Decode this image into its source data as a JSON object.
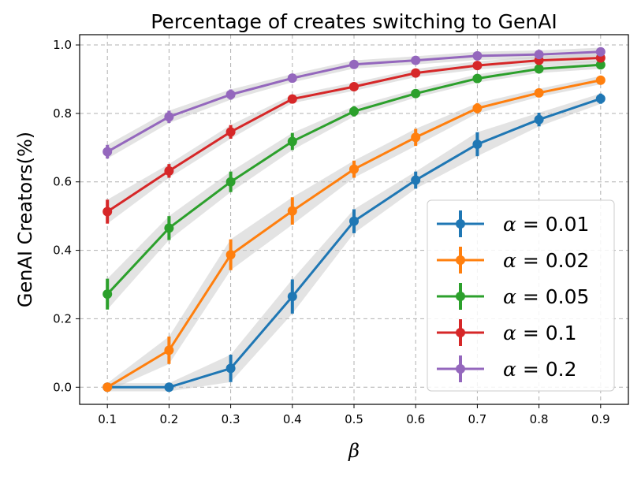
{
  "chart_data": {
    "type": "line",
    "title": "Percentage of creates switching to GenAI",
    "xlabel": "β",
    "ylabel": "GenAI Creators(%)",
    "x": [
      0.1,
      0.2,
      0.3,
      0.4,
      0.5,
      0.6,
      0.7,
      0.8,
      0.9
    ],
    "x_tick_labels": [
      "0.1",
      "0.2",
      "0.3",
      "0.4",
      "0.5",
      "0.6",
      "0.7",
      "0.8",
      "0.9"
    ],
    "xlim": [
      0.055,
      0.945
    ],
    "ylim": [
      -0.05,
      1.03
    ],
    "y_ticks": [
      0.0,
      0.2,
      0.4,
      0.6,
      0.8,
      1.0
    ],
    "y_tick_labels": [
      "0.0",
      "0.2",
      "0.4",
      "0.6",
      "0.8",
      "1.0"
    ],
    "grid": true,
    "legend_position": "bottom-right",
    "series": [
      {
        "name": "α = 0.01",
        "alpha_symbol": "α",
        "eq_text": " = 0.01",
        "color": "#1f77b4",
        "values": [
          0.0,
          0.0,
          0.055,
          0.265,
          0.485,
          0.605,
          0.71,
          0.782,
          0.843
        ],
        "errors": [
          0.0,
          0.0,
          0.04,
          0.05,
          0.035,
          0.025,
          0.035,
          0.02,
          0.015
        ]
      },
      {
        "name": "α = 0.02",
        "alpha_symbol": "α",
        "eq_text": " = 0.02",
        "color": "#ff7f0e",
        "values": [
          0.0,
          0.108,
          0.387,
          0.515,
          0.637,
          0.73,
          0.815,
          0.86,
          0.897
        ],
        "errors": [
          0.0,
          0.04,
          0.045,
          0.04,
          0.025,
          0.025,
          0.015,
          0.012,
          0.01
        ]
      },
      {
        "name": "α = 0.05",
        "alpha_symbol": "α",
        "eq_text": " = 0.05",
        "color": "#2ca02c",
        "values": [
          0.272,
          0.465,
          0.6,
          0.718,
          0.806,
          0.858,
          0.902,
          0.93,
          0.942
        ],
        "errors": [
          0.045,
          0.035,
          0.03,
          0.025,
          0.015,
          0.012,
          0.01,
          0.01,
          0.008
        ]
      },
      {
        "name": "α = 0.1",
        "alpha_symbol": "α",
        "eq_text": " = 0.1",
        "color": "#d62728",
        "values": [
          0.513,
          0.632,
          0.746,
          0.842,
          0.878,
          0.918,
          0.94,
          0.955,
          0.962
        ],
        "errors": [
          0.035,
          0.02,
          0.02,
          0.012,
          0.01,
          0.008,
          0.008,
          0.006,
          0.006
        ]
      },
      {
        "name": "α = 0.2",
        "alpha_symbol": "α",
        "eq_text": " = 0.2",
        "color": "#9467bd",
        "values": [
          0.688,
          0.79,
          0.855,
          0.903,
          0.943,
          0.955,
          0.968,
          0.972,
          0.98
        ],
        "errors": [
          0.02,
          0.018,
          0.015,
          0.01,
          0.008,
          0.006,
          0.006,
          0.005,
          0.005
        ]
      }
    ]
  }
}
